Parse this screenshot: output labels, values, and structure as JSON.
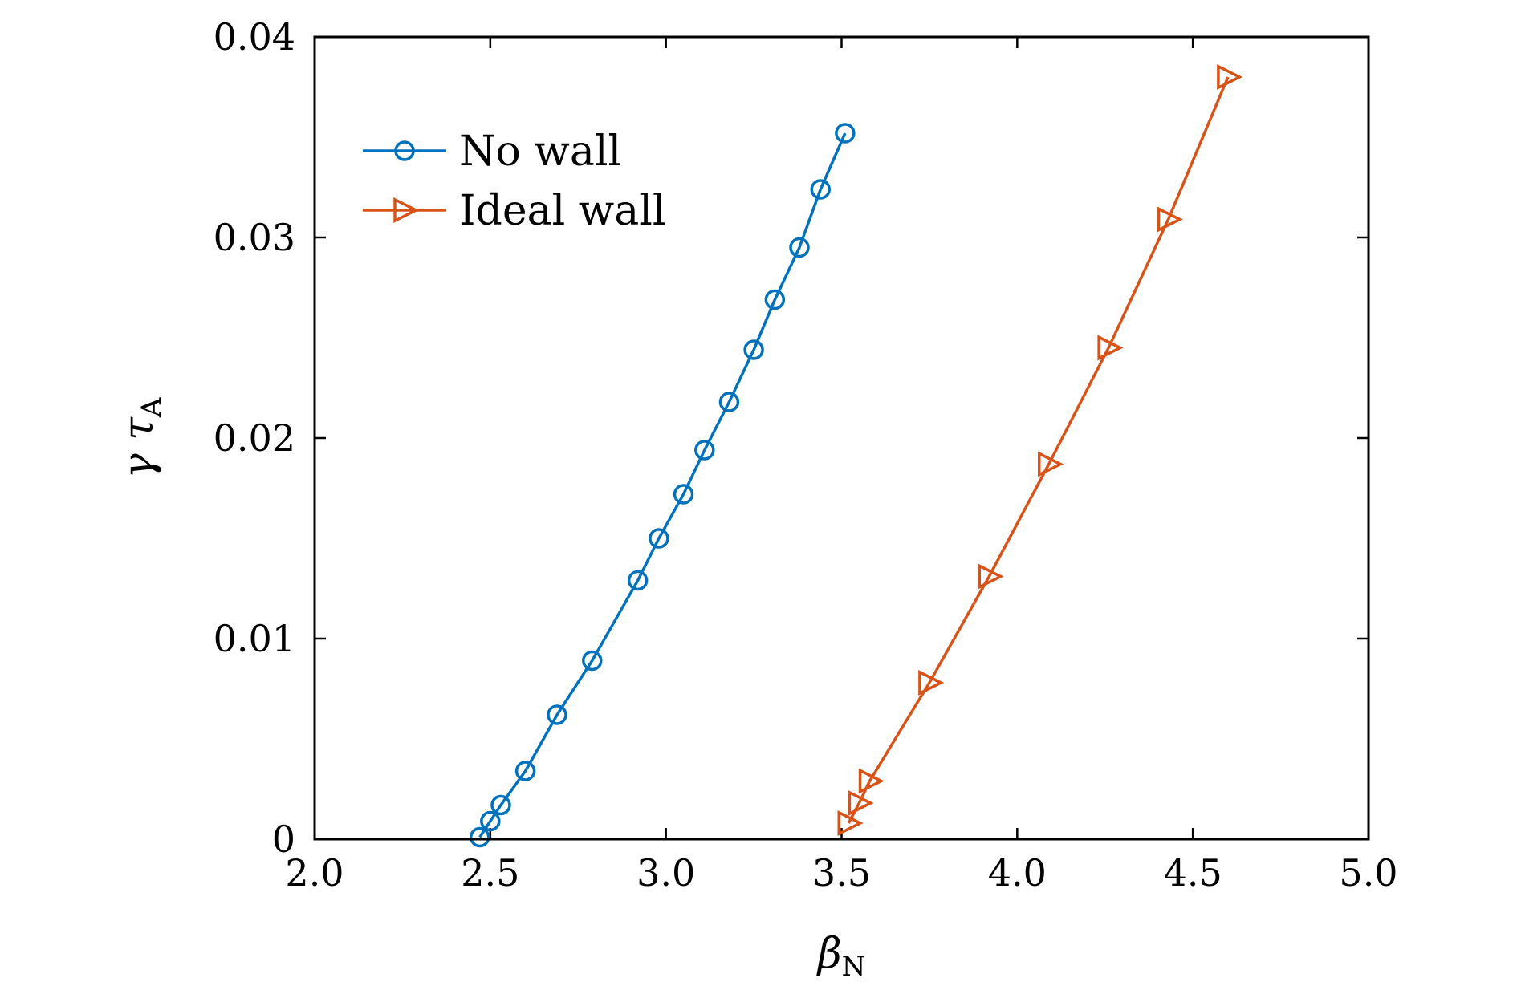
{
  "chart_data": {
    "type": "line",
    "title": "",
    "xlabel": "β",
    "xlabel_sub": "N",
    "ylabel": "γ τ",
    "ylabel_sub": "A",
    "xlim": [
      2.0,
      5.0
    ],
    "ylim": [
      0,
      0.04
    ],
    "xticks": [
      2.0,
      2.5,
      3.0,
      3.5,
      4.0,
      4.5,
      5.0
    ],
    "xtick_labels": [
      "2.0",
      "2.5",
      "3.0",
      "3.5",
      "4.0",
      "4.5",
      "5.0"
    ],
    "yticks": [
      0,
      0.01,
      0.02,
      0.03,
      0.04
    ],
    "ytick_labels": [
      "0",
      "0.01",
      "0.02",
      "0.03",
      "0.04"
    ],
    "grid": false,
    "legend_position": "top-left",
    "series": [
      {
        "name": "No wall",
        "color": "#0072BD",
        "marker": "circle",
        "x": [
          2.47,
          2.5,
          2.53,
          2.6,
          2.69,
          2.79,
          2.92,
          2.98,
          3.05,
          3.11,
          3.18,
          3.25,
          3.31,
          3.38,
          3.44,
          3.51
        ],
        "y": [
          0.0001,
          0.0009,
          0.0017,
          0.0034,
          0.0062,
          0.0089,
          0.0129,
          0.015,
          0.0172,
          0.0194,
          0.0218,
          0.0244,
          0.0269,
          0.0295,
          0.0324,
          0.0352
        ]
      },
      {
        "name": "Ideal wall",
        "color": "#D95319",
        "marker": "triangle-right",
        "x": [
          3.52,
          3.55,
          3.58,
          3.75,
          3.92,
          4.09,
          4.26,
          4.43,
          4.6
        ],
        "y": [
          0.0008,
          0.0018,
          0.0029,
          0.0078,
          0.0131,
          0.0187,
          0.0245,
          0.0309,
          0.038
        ]
      }
    ]
  }
}
